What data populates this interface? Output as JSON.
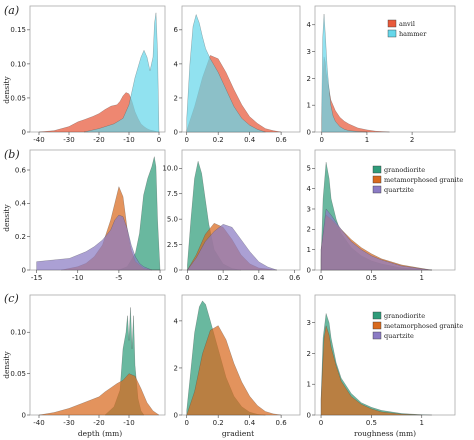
{
  "colors": {
    "anvil": "#e8593a",
    "hammer": "#66d7ea",
    "granodiorite": "#2f9c7a",
    "metamorphosed granite": "#d86a1e",
    "quartzite": "#8b7bc4",
    "panel_border": "#aaaaaa",
    "background": "#ffffff"
  },
  "row_labels": [
    "(a)",
    "(b)",
    "(c)"
  ],
  "y_axis_title": "density",
  "x_axis_titles": [
    "depth (mm)",
    "gradient",
    "roughness (mm)"
  ],
  "legends": {
    "a": [
      "anvil",
      "hammer"
    ],
    "b": [
      "granodiorite",
      "metamorphosed granite",
      "quartzite"
    ],
    "c": [
      "granodiorite",
      "metamorphosed granite",
      "quartzite"
    ]
  },
  "chart_data": [
    {
      "id": "a-depth",
      "type": "area",
      "row": 0,
      "col": 0,
      "xlim": [
        -43,
        2
      ],
      "ylim": [
        0,
        0.185
      ],
      "xticks": [
        -40,
        -30,
        -20,
        -10,
        0
      ],
      "yticks": [
        0,
        0.05,
        0.1,
        0.15
      ],
      "ytick_labels": [
        "0",
        "0.05",
        "0.10",
        "0.15"
      ],
      "series": [
        {
          "name": "anvil",
          "color_key": "anvil",
          "x": [
            -40,
            -35,
            -30,
            -27,
            -25,
            -22,
            -20,
            -18,
            -16,
            -14,
            -13,
            -12,
            -11,
            -10,
            -9,
            -8,
            -7,
            -6,
            -5,
            -4,
            -3,
            -2,
            -1,
            0
          ],
          "y": [
            0,
            0.002,
            0.008,
            0.015,
            0.018,
            0.023,
            0.027,
            0.033,
            0.038,
            0.04,
            0.045,
            0.053,
            0.058,
            0.056,
            0.045,
            0.03,
            0.02,
            0.012,
            0.008,
            0.005,
            0.003,
            0.002,
            0.001,
            0
          ]
        },
        {
          "name": "hammer",
          "color_key": "hammer",
          "x": [
            -25,
            -20,
            -15,
            -12,
            -10,
            -8,
            -6,
            -5,
            -4,
            -3,
            -2,
            -1.5,
            -1,
            -0.5,
            0
          ],
          "y": [
            0,
            0.005,
            0.012,
            0.02,
            0.04,
            0.08,
            0.11,
            0.12,
            0.11,
            0.09,
            0.11,
            0.16,
            0.175,
            0.12,
            0
          ]
        }
      ]
    },
    {
      "id": "a-gradient",
      "type": "area",
      "row": 0,
      "col": 1,
      "xlim": [
        -0.03,
        0.72
      ],
      "ylim": [
        0,
        7.4
      ],
      "xticks": [
        0,
        0.2,
        0.4,
        0.6
      ],
      "yticks": [
        0,
        2,
        4,
        6
      ],
      "ytick_labels": [
        "0",
        "2",
        "4",
        "6"
      ],
      "series": [
        {
          "name": "anvil",
          "color_key": "anvil",
          "x": [
            0,
            0.05,
            0.1,
            0.15,
            0.2,
            0.25,
            0.3,
            0.35,
            0.4,
            0.45,
            0.5,
            0.55,
            0.6
          ],
          "y": [
            0.1,
            1.5,
            3.2,
            4.5,
            4.3,
            3.5,
            2.5,
            1.6,
            0.9,
            0.5,
            0.2,
            0.08,
            0
          ]
        },
        {
          "name": "hammer",
          "color_key": "hammer",
          "x": [
            0,
            0.02,
            0.04,
            0.06,
            0.08,
            0.1,
            0.12,
            0.15,
            0.2,
            0.25,
            0.3,
            0.35,
            0.4,
            0.45,
            0.5
          ],
          "y": [
            0.8,
            4.0,
            6.2,
            6.9,
            6.4,
            5.6,
            4.9,
            4.3,
            3.5,
            2.5,
            1.5,
            0.8,
            0.4,
            0.15,
            0
          ]
        }
      ]
    },
    {
      "id": "a-roughness",
      "type": "area",
      "row": 0,
      "col": 2,
      "xlim": [
        -0.15,
        2.95
      ],
      "ylim": [
        0,
        4.7
      ],
      "xticks": [
        0,
        1,
        2
      ],
      "yticks": [
        0,
        1,
        2,
        3,
        4
      ],
      "ytick_labels": [
        "0",
        "1",
        "2",
        "3",
        "4"
      ],
      "series": [
        {
          "name": "anvil",
          "color_key": "anvil",
          "x": [
            0,
            0.03,
            0.05,
            0.08,
            0.1,
            0.2,
            0.3,
            0.4,
            0.5,
            0.6,
            0.8,
            1.0,
            1.2,
            1.5
          ],
          "y": [
            0.5,
            2.2,
            2.8,
            2.6,
            2.2,
            1.2,
            0.8,
            0.55,
            0.4,
            0.3,
            0.15,
            0.08,
            0.03,
            0
          ]
        },
        {
          "name": "hammer",
          "color_key": "hammer",
          "x": [
            0,
            0.02,
            0.05,
            0.08,
            0.1,
            0.12,
            0.15,
            0.2,
            0.25,
            0.3,
            0.4,
            0.5,
            0.6,
            0.8,
            1.0
          ],
          "y": [
            1.0,
            3.5,
            4.4,
            3.6,
            3.0,
            2.4,
            1.8,
            1.0,
            0.6,
            0.4,
            0.2,
            0.1,
            0.05,
            0.02,
            0
          ]
        }
      ]
    },
    {
      "id": "b-depth",
      "type": "area",
      "row": 1,
      "col": 0,
      "xlim": [
        -15.8,
        0.6
      ],
      "ylim": [
        0,
        0.72
      ],
      "xticks": [
        -15,
        -10,
        -5,
        0
      ],
      "yticks": [
        0,
        0.2,
        0.4,
        0.6
      ],
      "ytick_labels": [
        "0",
        "0.2",
        "0.4",
        "0.6"
      ],
      "series": [
        {
          "name": "granodiorite",
          "color_key": "granodiorite",
          "x": [
            -5,
            -4,
            -3.5,
            -3,
            -2.5,
            -2,
            -1.5,
            -1,
            -0.7,
            -0.5,
            -0.3,
            -0.1,
            0
          ],
          "y": [
            0,
            0.02,
            0.06,
            0.1,
            0.22,
            0.45,
            0.55,
            0.62,
            0.68,
            0.62,
            0.3,
            0.1,
            0
          ]
        },
        {
          "name": "metamorphosed granite",
          "color_key": "metamorphosed granite",
          "x": [
            -12,
            -10,
            -9,
            -8,
            -7,
            -6,
            -5.5,
            -5,
            -4.5,
            -4,
            -3.5,
            -3,
            -2,
            -1,
            0
          ],
          "y": [
            0,
            0.02,
            0.04,
            0.08,
            0.15,
            0.3,
            0.4,
            0.5,
            0.44,
            0.25,
            0.12,
            0.05,
            0.01,
            0,
            0
          ]
        },
        {
          "name": "quartzite",
          "color_key": "quartzite",
          "x": [
            -15,
            -13,
            -11,
            -10,
            -9,
            -8,
            -7,
            -6,
            -5.5,
            -5,
            -4.5,
            -4,
            -3.5,
            -3,
            -2.5,
            -2,
            -1
          ],
          "y": [
            0.05,
            0.06,
            0.07,
            0.09,
            0.11,
            0.14,
            0.18,
            0.24,
            0.3,
            0.33,
            0.32,
            0.25,
            0.15,
            0.08,
            0.04,
            0.02,
            0
          ]
        }
      ]
    },
    {
      "id": "b-gradient",
      "type": "area",
      "row": 1,
      "col": 1,
      "xlim": [
        -0.03,
        0.63
      ],
      "ylim": [
        0,
        11.8
      ],
      "xticks": [
        0,
        0.2,
        0.4,
        0.6
      ],
      "yticks": [
        0,
        2.5,
        5.0,
        7.5,
        10.0
      ],
      "ytick_labels": [
        "0",
        "2.5",
        "5.0",
        "7.5",
        "10.0"
      ],
      "series": [
        {
          "name": "granodiorite",
          "color_key": "granodiorite",
          "x": [
            0,
            0.02,
            0.04,
            0.06,
            0.08,
            0.1,
            0.12,
            0.15,
            0.2,
            0.25,
            0.3
          ],
          "y": [
            0.5,
            5.0,
            9.0,
            10.7,
            9.5,
            7.0,
            4.5,
            2.0,
            0.6,
            0.15,
            0
          ]
        },
        {
          "name": "metamorphosed granite",
          "color_key": "metamorphosed granite",
          "x": [
            0,
            0.05,
            0.1,
            0.15,
            0.2,
            0.25,
            0.3,
            0.35,
            0.4,
            0.5
          ],
          "y": [
            0,
            1.5,
            3.5,
            4.6,
            4.2,
            3.0,
            1.5,
            0.6,
            0.2,
            0
          ]
        },
        {
          "name": "quartzite",
          "color_key": "quartzite",
          "x": [
            0,
            0.05,
            0.1,
            0.15,
            0.2,
            0.25,
            0.3,
            0.35,
            0.4,
            0.45,
            0.5
          ],
          "y": [
            0,
            1.2,
            2.8,
            3.8,
            4.5,
            4.2,
            3.0,
            1.8,
            0.8,
            0.3,
            0
          ]
        }
      ]
    },
    {
      "id": "b-roughness",
      "type": "area",
      "row": 1,
      "col": 2,
      "xlim": [
        -0.06,
        1.33
      ],
      "ylim": [
        0,
        5.9
      ],
      "xticks": [
        0,
        0.5,
        1.0
      ],
      "yticks": [
        0,
        1,
        2,
        3,
        4,
        5
      ],
      "ytick_labels": [
        "0",
        "1",
        "2",
        "3",
        "4",
        "5"
      ],
      "series": [
        {
          "name": "granodiorite",
          "color_key": "granodiorite",
          "x": [
            0,
            0.02,
            0.05,
            0.08,
            0.1,
            0.15,
            0.2,
            0.3,
            0.4,
            0.5,
            0.6,
            0.8,
            1.0,
            1.1
          ],
          "y": [
            0.5,
            3.5,
            5.3,
            4.5,
            3.5,
            2.5,
            1.8,
            1.1,
            0.7,
            0.45,
            0.3,
            0.1,
            0.03,
            0
          ]
        },
        {
          "name": "metamorphosed granite",
          "color_key": "metamorphosed granite",
          "x": [
            0,
            0.05,
            0.1,
            0.2,
            0.3,
            0.4,
            0.5,
            0.6,
            0.8,
            1.0,
            1.1
          ],
          "y": [
            1.0,
            2.7,
            2.5,
            2.0,
            1.5,
            1.1,
            0.8,
            0.55,
            0.25,
            0.08,
            0
          ]
        },
        {
          "name": "quartzite",
          "color_key": "quartzite",
          "x": [
            0,
            0.05,
            0.1,
            0.2,
            0.3,
            0.4,
            0.5,
            0.6,
            0.8,
            1.0,
            1.1
          ],
          "y": [
            1.0,
            3.0,
            2.7,
            2.0,
            1.4,
            1.0,
            0.7,
            0.5,
            0.2,
            0.06,
            0
          ]
        }
      ]
    },
    {
      "id": "c-depth",
      "type": "area",
      "row": 2,
      "col": 0,
      "xlim": [
        -43,
        2
      ],
      "ylim": [
        0,
        0.145
      ],
      "xticks": [
        -40,
        -30,
        -20,
        -10
      ],
      "yticks": [
        0,
        0.05,
        0.1
      ],
      "ytick_labels": [
        "0",
        "0.05",
        "0.10"
      ],
      "series": [
        {
          "name": "granodiorite",
          "color_key": "granodiorite",
          "x": [
            -18,
            -15,
            -13,
            -12,
            -11,
            -10.5,
            -10,
            -9.5,
            -9,
            -8.5,
            -8,
            -7.5,
            -7,
            -6,
            -5
          ],
          "y": [
            0,
            0.01,
            0.03,
            0.08,
            0.1,
            0.12,
            0.09,
            0.13,
            0.08,
            0.12,
            0.06,
            0.04,
            0.02,
            0.005,
            0
          ]
        },
        {
          "name": "metamorphosed granite",
          "color_key": "metamorphosed granite",
          "x": [
            -40,
            -35,
            -30,
            -25,
            -20,
            -18,
            -16,
            -14,
            -12,
            -10,
            -8,
            -6,
            -4,
            -2,
            0
          ],
          "y": [
            0,
            0.003,
            0.008,
            0.015,
            0.022,
            0.028,
            0.033,
            0.038,
            0.042,
            0.05,
            0.047,
            0.032,
            0.015,
            0.005,
            0
          ]
        }
      ]
    },
    {
      "id": "c-gradient",
      "type": "area",
      "row": 2,
      "col": 1,
      "xlim": [
        -0.03,
        0.72
      ],
      "ylim": [
        0,
        5.1
      ],
      "xticks": [
        0,
        0.2,
        0.4,
        0.6
      ],
      "yticks": [
        0,
        2,
        4
      ],
      "ytick_labels": [
        "0",
        "2",
        "4"
      ],
      "series": [
        {
          "name": "granodiorite",
          "color_key": "granodiorite",
          "x": [
            0,
            0.02,
            0.05,
            0.08,
            0.1,
            0.12,
            0.15,
            0.2,
            0.25,
            0.3,
            0.35,
            0.4,
            0.45,
            0.5
          ],
          "y": [
            0.2,
            1.5,
            3.5,
            4.6,
            4.85,
            4.7,
            4.0,
            2.8,
            1.6,
            0.8,
            0.35,
            0.12,
            0.03,
            0
          ]
        },
        {
          "name": "metamorphosed granite",
          "color_key": "metamorphosed granite",
          "x": [
            0,
            0.05,
            0.1,
            0.15,
            0.2,
            0.25,
            0.3,
            0.35,
            0.4,
            0.45,
            0.5,
            0.55,
            0.6
          ],
          "y": [
            0,
            1.0,
            2.6,
            3.6,
            3.8,
            3.2,
            2.2,
            1.4,
            0.8,
            0.4,
            0.15,
            0.05,
            0
          ]
        }
      ]
    },
    {
      "id": "c-roughness",
      "type": "area",
      "row": 2,
      "col": 2,
      "xlim": [
        -0.06,
        1.33
      ],
      "ylim": [
        0,
        3.9
      ],
      "xticks": [
        0,
        0.5,
        1.0
      ],
      "yticks": [
        0,
        1,
        2,
        3
      ],
      "ytick_labels": [
        "0",
        "1",
        "2",
        "3"
      ],
      "series": [
        {
          "name": "granodiorite",
          "color_key": "granodiorite",
          "x": [
            0,
            0.02,
            0.05,
            0.08,
            0.1,
            0.15,
            0.2,
            0.3,
            0.4,
            0.5,
            0.6,
            0.8,
            1.0,
            1.1
          ],
          "y": [
            0.5,
            2.5,
            3.3,
            3.0,
            2.5,
            1.7,
            1.2,
            0.7,
            0.4,
            0.25,
            0.15,
            0.05,
            0.01,
            0
          ]
        },
        {
          "name": "metamorphosed granite",
          "color_key": "metamorphosed granite",
          "x": [
            0,
            0.03,
            0.05,
            0.08,
            0.1,
            0.15,
            0.2,
            0.3,
            0.4,
            0.5,
            0.6,
            0.8,
            1.0
          ],
          "y": [
            0.5,
            2.5,
            2.9,
            2.6,
            2.2,
            1.6,
            1.1,
            0.6,
            0.35,
            0.2,
            0.1,
            0.03,
            0
          ]
        }
      ]
    }
  ]
}
